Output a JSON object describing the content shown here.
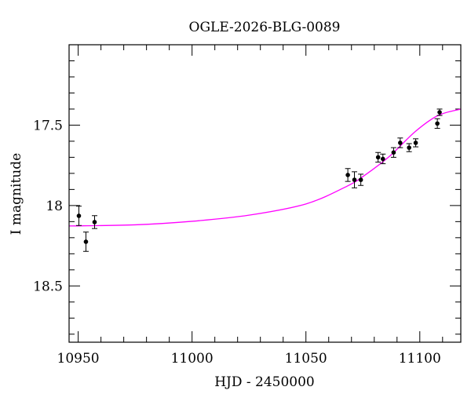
{
  "chart_data": {
    "type": "scatter",
    "title": "OGLE-2026-BLG-0089",
    "xlabel": "HJD - 2450000",
    "ylabel": "I magnitude",
    "xlim": [
      10946,
      11118
    ],
    "ylim": [
      18.85,
      17.0
    ],
    "y_inverted": true,
    "grid": false,
    "x_ticks": [
      10950,
      11000,
      11050,
      11100
    ],
    "x_tick_labels": [
      "10950",
      "11000",
      "11050",
      "11100"
    ],
    "y_ticks": [
      17.5,
      18,
      18.5
    ],
    "y_tick_labels": [
      "17.5",
      "18",
      "18.5"
    ],
    "colors": {
      "points": "#000000",
      "model": "#ff00ff"
    },
    "series": [
      {
        "kind": "points-with-errorbars",
        "x": [
          10950.3,
          10953.4,
          10957.2,
          11068.4,
          11071.3,
          11074.1,
          11081.7,
          11083.8,
          11088.5,
          11091.4,
          11095.3,
          11098.2,
          11107.7,
          11108.7
        ],
        "y": [
          18.064,
          18.225,
          18.103,
          17.81,
          17.84,
          17.84,
          17.7,
          17.71,
          17.67,
          17.61,
          17.64,
          17.61,
          17.49,
          17.42
        ],
        "err": [
          0.06,
          0.06,
          0.04,
          0.04,
          0.05,
          0.035,
          0.03,
          0.03,
          0.03,
          0.03,
          0.025,
          0.025,
          0.03,
          0.02
        ]
      },
      {
        "kind": "model-curve",
        "x": [
          10946,
          10975,
          11000,
          11025,
          11050,
          11068,
          11076,
          11087,
          11098,
          11108,
          11118
        ],
        "y": [
          18.127,
          18.12,
          18.098,
          18.06,
          17.99,
          17.88,
          17.81,
          17.69,
          17.54,
          17.44,
          17.4
        ]
      }
    ]
  }
}
